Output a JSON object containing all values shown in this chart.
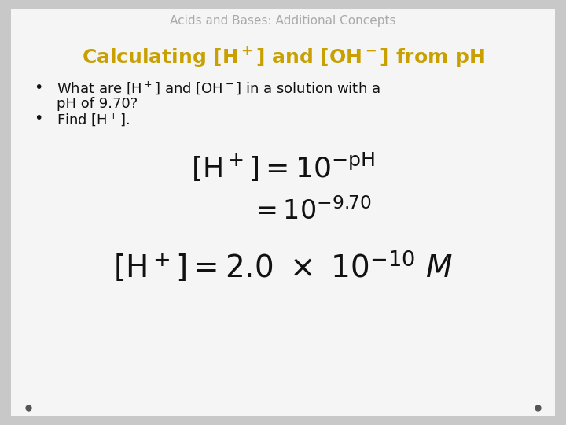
{
  "bg_outer": "#c8c8c8",
  "bg_inner": "#f2f2f2",
  "title_text": "Acids and Bases: Additional Concepts",
  "title_color": "#aaaaaa",
  "title_fontsize": 11,
  "subtitle_color": "#c8a000",
  "subtitle_fontsize": 18,
  "bullet_fontsize": 13,
  "bullet_color": "#111111",
  "eq_color": "#111111",
  "eq1_fontsize": 26,
  "eq2_fontsize": 24,
  "eq3_fontsize": 28,
  "dot_color": "#555555"
}
